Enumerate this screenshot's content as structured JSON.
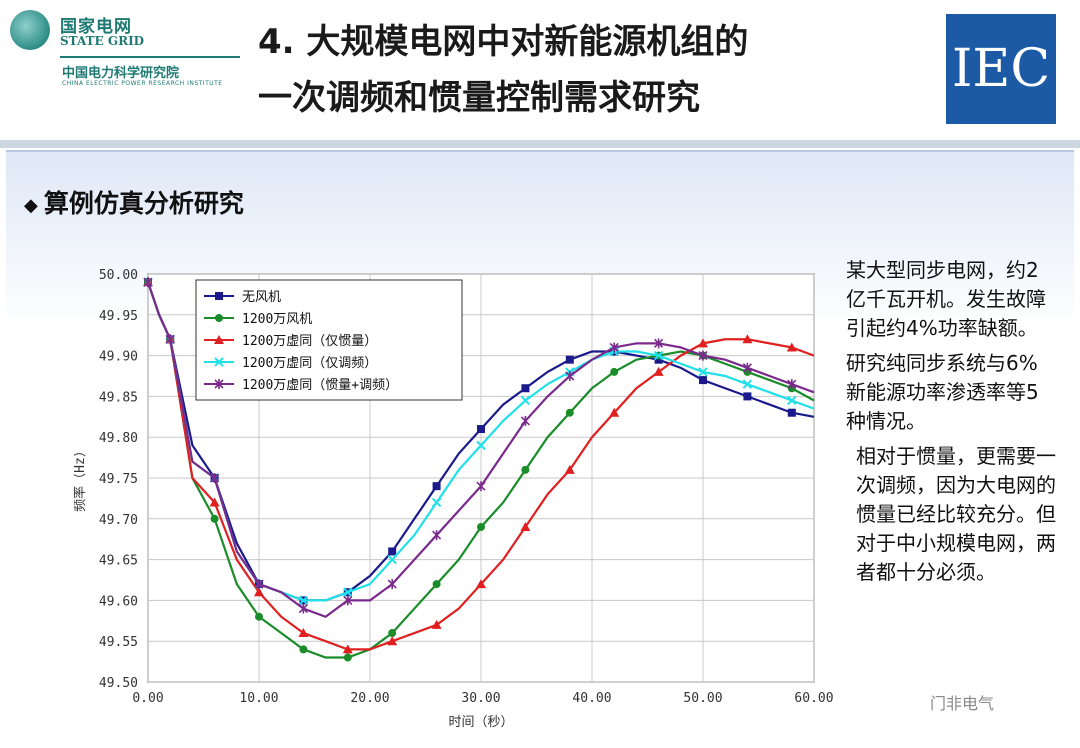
{
  "header": {
    "logo": {
      "cn": "国家电网",
      "en": "STATE GRID",
      "inst_cn": "中国电力科学研究院",
      "inst_en": "CHINA ELECTRIC POWER RESEARCH INSTITUTE"
    },
    "title_line1": "4. 大规模电网中对新能源机组的",
    "title_line2": "一次调频和惯量控制需求研究",
    "iec": "IEC"
  },
  "section_title": "算例仿真分析研究",
  "notes": {
    "p1": "某大型同步电网，约2亿千瓦开机。发生故障引起约4%功率缺额。",
    "p2": "研究纯同步系统与6%新能源功率渗透率等5种情况。",
    "p3": "相对于惯量，更需要一次调频，因为大电网的惯量已经比较充分。但对于中小规模电网，两者都十分必须。"
  },
  "watermark": "门非电气",
  "chart_data": {
    "type": "line",
    "xlabel": "时间（秒）",
    "ylabel": "频率（Hz）",
    "xlim": [
      0,
      60
    ],
    "ylim": [
      49.5,
      50.0
    ],
    "xticks": [
      "0.00",
      "10.00",
      "20.00",
      "30.00",
      "40.00",
      "50.00",
      "60.00"
    ],
    "yticks": [
      "49.50",
      "49.55",
      "49.60",
      "49.65",
      "49.70",
      "49.75",
      "49.80",
      "49.85",
      "49.90",
      "49.95",
      "50.00"
    ],
    "legend_position": "top-left",
    "grid": true,
    "series": [
      {
        "name": "无风机",
        "color": "#1a1a8c",
        "marker": "square",
        "x": [
          0,
          1,
          2,
          4,
          6,
          8,
          10,
          12,
          14,
          16,
          18,
          20,
          22,
          24,
          26,
          28,
          30,
          32,
          34,
          36,
          38,
          40,
          42,
          44,
          46,
          48,
          50,
          52,
          54,
          56,
          58,
          60
        ],
        "y": [
          49.99,
          49.95,
          49.92,
          49.79,
          49.75,
          49.67,
          49.62,
          49.61,
          49.6,
          49.6,
          49.61,
          49.63,
          49.66,
          49.7,
          49.74,
          49.78,
          49.81,
          49.84,
          49.86,
          49.88,
          49.895,
          49.905,
          49.905,
          49.9,
          49.895,
          49.885,
          49.87,
          49.86,
          49.85,
          49.84,
          49.83,
          49.825
        ]
      },
      {
        "name": "1200万风机",
        "color": "#1a8c2a",
        "marker": "circle",
        "x": [
          0,
          1,
          2,
          4,
          6,
          8,
          10,
          12,
          14,
          16,
          18,
          20,
          22,
          24,
          26,
          28,
          30,
          32,
          34,
          36,
          38,
          40,
          42,
          44,
          46,
          48,
          50,
          52,
          54,
          56,
          58,
          60
        ],
        "y": [
          49.99,
          49.95,
          49.92,
          49.75,
          49.7,
          49.62,
          49.58,
          49.56,
          49.54,
          49.53,
          49.53,
          49.54,
          49.56,
          49.59,
          49.62,
          49.65,
          49.69,
          49.72,
          49.76,
          49.8,
          49.83,
          49.86,
          49.88,
          49.895,
          49.9,
          49.905,
          49.9,
          49.89,
          49.88,
          49.87,
          49.86,
          49.845
        ]
      },
      {
        "name": "1200万虚同（仅惯量）",
        "color": "#e02020",
        "marker": "triangle",
        "x": [
          0,
          1,
          2,
          4,
          6,
          8,
          10,
          12,
          14,
          16,
          18,
          20,
          22,
          24,
          26,
          28,
          30,
          32,
          34,
          36,
          38,
          40,
          42,
          44,
          46,
          48,
          50,
          52,
          54,
          56,
          58,
          60
        ],
        "y": [
          49.99,
          49.95,
          49.92,
          49.75,
          49.72,
          49.65,
          49.61,
          49.58,
          49.56,
          49.55,
          49.54,
          49.54,
          49.55,
          49.56,
          49.57,
          49.59,
          49.62,
          49.65,
          49.69,
          49.73,
          49.76,
          49.8,
          49.83,
          49.86,
          49.88,
          49.9,
          49.915,
          49.92,
          49.92,
          49.915,
          49.91,
          49.9
        ]
      },
      {
        "name": "1200万虚同（仅调频）",
        "color": "#20e0e8",
        "marker": "x",
        "x": [
          0,
          1,
          2,
          4,
          6,
          8,
          10,
          12,
          14,
          16,
          18,
          20,
          22,
          24,
          26,
          28,
          30,
          32,
          34,
          36,
          38,
          40,
          42,
          44,
          46,
          48,
          50,
          52,
          54,
          56,
          58,
          60
        ],
        "y": [
          49.99,
          49.95,
          49.92,
          49.77,
          49.75,
          49.66,
          49.62,
          49.61,
          49.6,
          49.6,
          49.61,
          49.62,
          49.65,
          49.68,
          49.72,
          49.76,
          49.79,
          49.82,
          49.845,
          49.865,
          49.88,
          49.895,
          49.905,
          49.905,
          49.9,
          49.89,
          49.88,
          49.875,
          49.865,
          49.855,
          49.845,
          49.835
        ]
      },
      {
        "name": "1200万虚同（惯量+调频）",
        "color": "#7a2a8c",
        "marker": "star",
        "x": [
          0,
          1,
          2,
          4,
          6,
          8,
          10,
          12,
          14,
          16,
          18,
          20,
          22,
          24,
          26,
          28,
          30,
          32,
          34,
          36,
          38,
          40,
          42,
          44,
          46,
          48,
          50,
          52,
          54,
          56,
          58,
          60
        ],
        "y": [
          49.99,
          49.95,
          49.92,
          49.77,
          49.75,
          49.66,
          49.62,
          49.61,
          49.59,
          49.58,
          49.6,
          49.6,
          49.62,
          49.65,
          49.68,
          49.71,
          49.74,
          49.78,
          49.82,
          49.85,
          49.875,
          49.895,
          49.91,
          49.915,
          49.915,
          49.91,
          49.9,
          49.895,
          49.885,
          49.875,
          49.865,
          49.855
        ]
      }
    ]
  }
}
